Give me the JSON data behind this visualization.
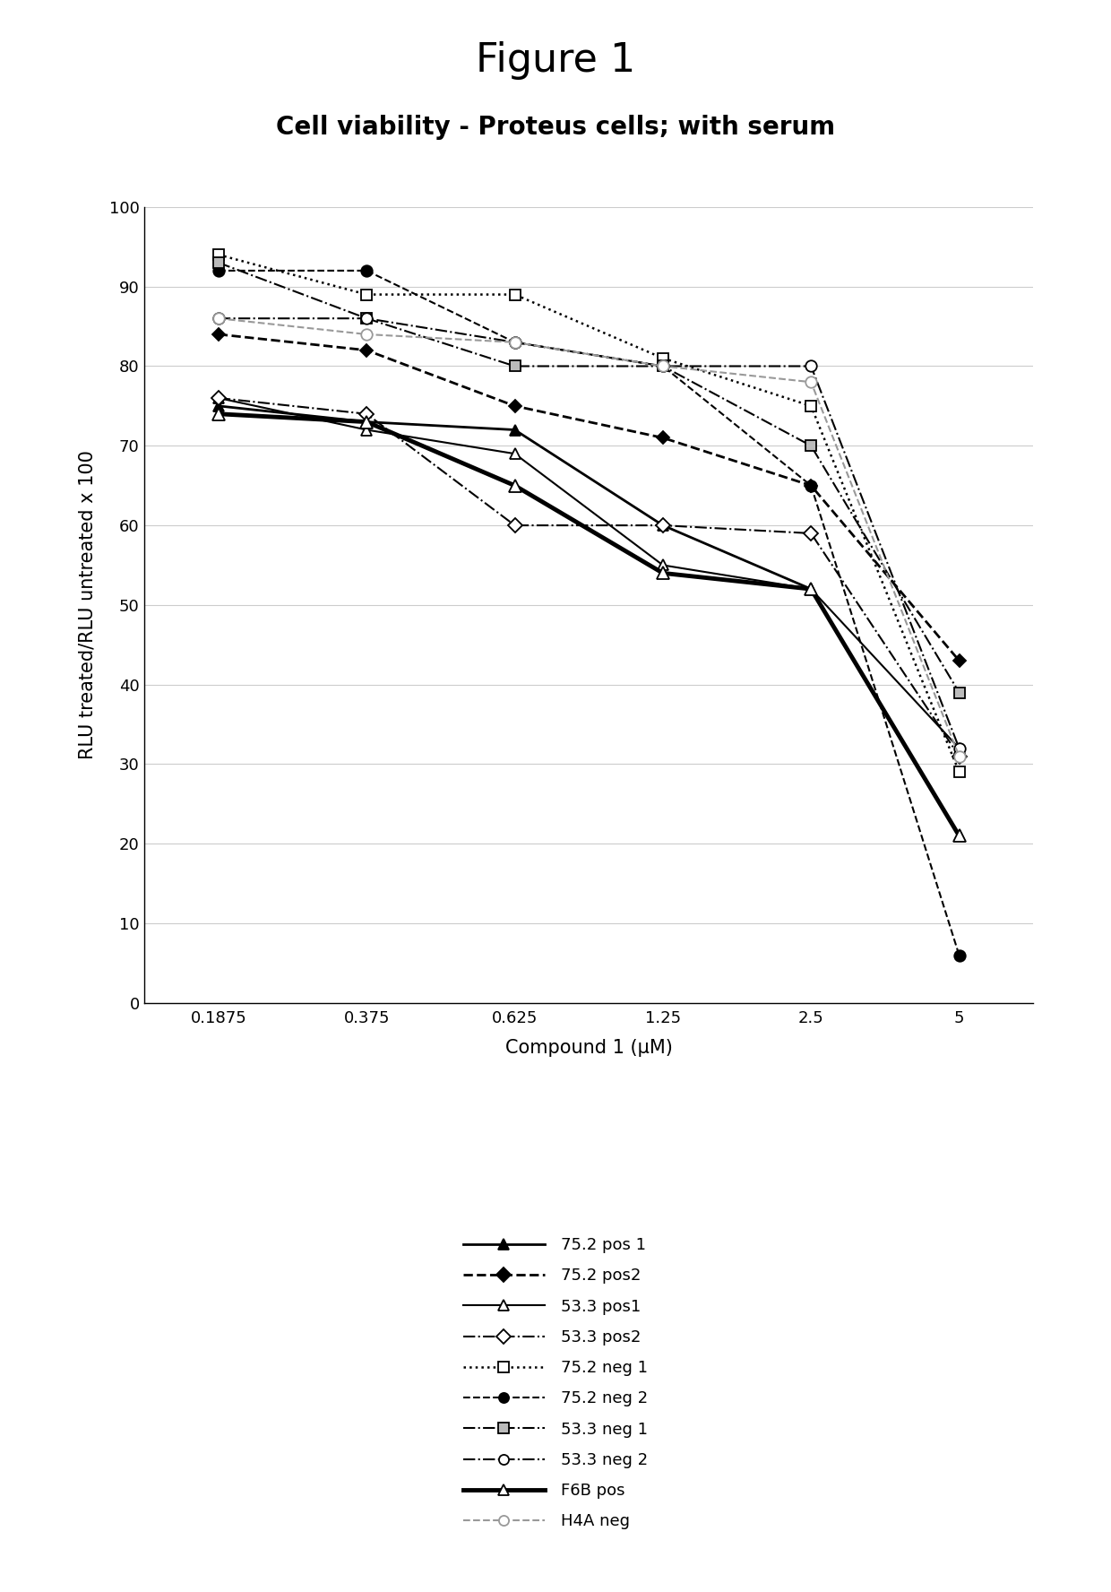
{
  "title": "Figure 1",
  "subtitle": "Cell viability - Proteus cells; with serum",
  "xlabel": "Compound 1 (μM)",
  "ylabel": "RLU treated/RLU untreated x 100",
  "x_positions": [
    1,
    2,
    3,
    4,
    5,
    6
  ],
  "x_tick_labels": [
    "0.1875",
    "0.375",
    "0.625",
    "1.25",
    "2.5",
    "5"
  ],
  "ylim": [
    0,
    100
  ],
  "yticks": [
    0,
    10,
    20,
    30,
    40,
    50,
    60,
    70,
    80,
    90,
    100
  ],
  "series": [
    {
      "label": "75.2 pos 1",
      "y": [
        75,
        73,
        72,
        60,
        52,
        21
      ],
      "color": "#000000",
      "linestyle": "-",
      "linewidth": 2.0,
      "marker": "^",
      "markersize": 8,
      "markerfacecolor": "#000000",
      "markeredgecolor": "#000000"
    },
    {
      "label": "75.2 pos2",
      "y": [
        84,
        82,
        75,
        71,
        65,
        43
      ],
      "color": "#000000",
      "linestyle": "--",
      "linewidth": 2.0,
      "marker": "D",
      "markersize": 7,
      "markerfacecolor": "#000000",
      "markeredgecolor": "#000000"
    },
    {
      "label": "53.3 pos1",
      "y": [
        76,
        72,
        69,
        55,
        52,
        32
      ],
      "color": "#000000",
      "linestyle": "-",
      "linewidth": 1.5,
      "marker": "^",
      "markersize": 9,
      "markerfacecolor": "white",
      "markeredgecolor": "#000000"
    },
    {
      "label": "53.3 pos2",
      "y": [
        76,
        74,
        60,
        60,
        59,
        31
      ],
      "color": "#000000",
      "linestyle": "-.",
      "linewidth": 1.5,
      "marker": "D",
      "markersize": 8,
      "markerfacecolor": "white",
      "markeredgecolor": "#000000"
    },
    {
      "label": "75.2 neg 1",
      "y": [
        94,
        89,
        89,
        81,
        75,
        29
      ],
      "color": "#000000",
      "linestyle": ":",
      "linewidth": 1.8,
      "marker": "s",
      "markersize": 9,
      "markerfacecolor": "white",
      "markeredgecolor": "#000000"
    },
    {
      "label": "75.2 neg 2",
      "y": [
        92,
        92,
        83,
        80,
        65,
        6
      ],
      "color": "#000000",
      "linestyle": "--",
      "linewidth": 1.5,
      "marker": "o",
      "markersize": 9,
      "markerfacecolor": "#000000",
      "markeredgecolor": "#000000"
    },
    {
      "label": "53.3 neg 1",
      "y": [
        93,
        86,
        80,
        80,
        70,
        39
      ],
      "color": "#000000",
      "linestyle": "-.",
      "linewidth": 1.5,
      "marker": "s",
      "markersize": 9,
      "markerfacecolor": "#bbbbbb",
      "markeredgecolor": "#000000"
    },
    {
      "label": "53.3 neg 2",
      "y": [
        86,
        86,
        83,
        80,
        80,
        32
      ],
      "color": "#000000",
      "linestyle": "-.",
      "linewidth": 1.5,
      "marker": "o",
      "markersize": 9,
      "markerfacecolor": "white",
      "markeredgecolor": "#000000"
    },
    {
      "label": "F6B pos",
      "y": [
        74,
        73,
        65,
        54,
        52,
        21
      ],
      "color": "#000000",
      "linestyle": "-",
      "linewidth": 3.5,
      "marker": "^",
      "markersize": 10,
      "markerfacecolor": "white",
      "markeredgecolor": "#000000"
    },
    {
      "label": "H4A neg",
      "y": [
        86,
        84,
        83,
        80,
        78,
        31
      ],
      "color": "#999999",
      "linestyle": "--",
      "linewidth": 1.5,
      "marker": "o",
      "markersize": 9,
      "markerfacecolor": "white",
      "markeredgecolor": "#999999"
    }
  ],
  "background_color": "#ffffff",
  "grid_color": "#cccccc",
  "title_fontsize": 32,
  "subtitle_fontsize": 20,
  "axis_label_fontsize": 15,
  "tick_fontsize": 13,
  "legend_fontsize": 13
}
